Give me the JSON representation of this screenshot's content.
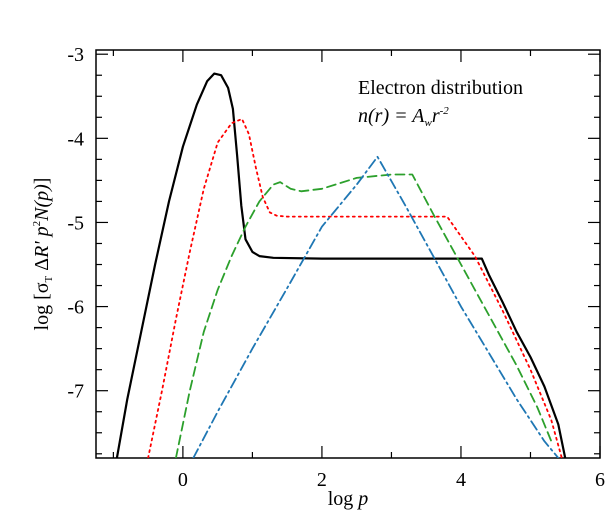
{
  "chart_data": {
    "type": "line",
    "xlabel": "log  p",
    "ylabel": "log [σT ΔR' p2N(p)]",
    "xlim": [
      -1.25,
      6.0
    ],
    "ylim": [
      -7.8,
      -2.95
    ],
    "xticks": [
      0,
      2,
      4,
      6
    ],
    "yticks": [
      -3,
      -4,
      -5,
      -6,
      -7
    ],
    "annotation": {
      "line1": "Electron distribution",
      "line2_prefix": "n(r) = A",
      "line2_sub": "w",
      "line2_mid": "r",
      "line2_sup": "-2"
    },
    "series": [
      {
        "color": "#000000",
        "dash": "solid",
        "x": [
          -0.95,
          -0.8,
          -0.6,
          -0.4,
          -0.2,
          0.0,
          0.2,
          0.35,
          0.45,
          0.55,
          0.65,
          0.72,
          0.78,
          0.84,
          0.9,
          1.0,
          1.1,
          1.3,
          2.0,
          3.0,
          4.0,
          4.3,
          4.4,
          4.6,
          4.8,
          5.0,
          5.2,
          5.4,
          5.5
        ],
        "y": [
          -7.8,
          -7.1,
          -6.3,
          -5.5,
          -4.75,
          -4.1,
          -3.6,
          -3.32,
          -3.23,
          -3.25,
          -3.4,
          -3.65,
          -4.2,
          -4.8,
          -5.2,
          -5.35,
          -5.4,
          -5.42,
          -5.43,
          -5.43,
          -5.43,
          -5.43,
          -5.62,
          -5.95,
          -6.3,
          -6.6,
          -6.95,
          -7.4,
          -7.8
        ]
      },
      {
        "color": "#ff0000",
        "dash": "dotted",
        "x": [
          -0.5,
          -0.3,
          -0.1,
          0.1,
          0.3,
          0.5,
          0.7,
          0.85,
          0.95,
          1.05,
          1.15,
          1.25,
          1.35,
          1.5,
          2.0,
          3.0,
          3.5,
          3.8,
          4.2,
          4.6,
          5.0,
          5.3,
          5.45
        ],
        "y": [
          -7.8,
          -7.0,
          -6.15,
          -5.35,
          -4.6,
          -4.05,
          -3.82,
          -3.77,
          -3.95,
          -4.35,
          -4.7,
          -4.88,
          -4.92,
          -4.93,
          -4.93,
          -4.93,
          -4.93,
          -4.93,
          -5.4,
          -6.05,
          -6.75,
          -7.35,
          -7.8
        ]
      },
      {
        "color": "#2ca02c",
        "dash": "dashed",
        "x": [
          -0.1,
          0.1,
          0.3,
          0.5,
          0.7,
          0.9,
          1.1,
          1.3,
          1.4,
          1.55,
          1.7,
          2.0,
          2.5,
          3.0,
          3.3,
          3.6,
          4.0,
          4.4,
          4.8,
          5.1,
          5.3
        ],
        "y": [
          -7.8,
          -7.0,
          -6.3,
          -5.8,
          -5.4,
          -5.05,
          -4.75,
          -4.55,
          -4.52,
          -4.6,
          -4.63,
          -4.6,
          -4.47,
          -4.43,
          -4.43,
          -4.9,
          -5.5,
          -6.1,
          -6.7,
          -7.2,
          -7.6
        ]
      },
      {
        "color": "#1f77b4",
        "dash": "dashdot",
        "x": [
          0.15,
          0.5,
          1.0,
          1.5,
          2.0,
          2.5,
          2.8,
          3.2,
          3.6,
          4.0,
          4.4,
          4.8,
          5.2,
          5.4
        ],
        "y": [
          -7.8,
          -7.25,
          -6.5,
          -5.78,
          -5.05,
          -4.55,
          -4.22,
          -4.8,
          -5.4,
          -6.0,
          -6.55,
          -7.1,
          -7.6,
          -7.8
        ]
      }
    ]
  }
}
